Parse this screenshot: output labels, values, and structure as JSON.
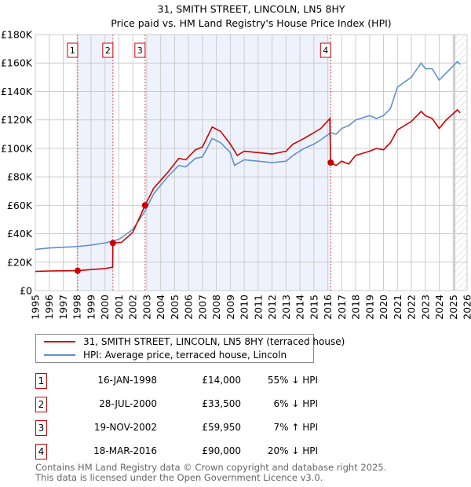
{
  "title": "31, SMITH STREET, LINCOLN, LN5 8HY",
  "subtitle": "Price paid vs. HM Land Registry's House Price Index (HPI)",
  "colors": {
    "property": "#cc0000",
    "hpi": "#6090d0",
    "shade": "#eef2fc"
  },
  "chart_data": {
    "type": "line",
    "xlim": [
      1995,
      2026
    ],
    "ylim": [
      0,
      180000
    ],
    "yticks": [
      0,
      20000,
      40000,
      60000,
      80000,
      100000,
      120000,
      140000,
      160000,
      180000
    ],
    "ytick_labels": [
      "£0",
      "£20K",
      "£40K",
      "£60K",
      "£80K",
      "£100K",
      "£120K",
      "£140K",
      "£160K",
      "£180K"
    ],
    "xticks": [
      1995,
      1996,
      1997,
      1998,
      1999,
      2000,
      2001,
      2002,
      2003,
      2004,
      2005,
      2006,
      2007,
      2008,
      2009,
      2010,
      2011,
      2012,
      2013,
      2014,
      2015,
      2016,
      2017,
      2018,
      2019,
      2020,
      2021,
      2022,
      2023,
      2024,
      2025,
      2026
    ],
    "grid": true,
    "forecast_hatch_from": 2025.1,
    "series": [
      {
        "name": "31, SMITH STREET, LINCOLN, LN5 8HY (terraced house)",
        "x": [
          1995,
          1996,
          1997,
          1998.04,
          1999,
          2000,
          2000.55,
          2000.57,
          2001.2,
          2002,
          2002.88,
          2003.5,
          2004.5,
          2005.3,
          2005.8,
          2006.5,
          2007,
          2007.7,
          2008.3,
          2009,
          2009.5,
          2010,
          2011,
          2012,
          2013,
          2013.5,
          2014.3,
          2015,
          2015.5,
          2016.15,
          2016.2,
          2016.6,
          2017,
          2017.5,
          2018,
          2019,
          2019.5,
          2020,
          2020.5,
          2021,
          2022,
          2022.7,
          2023,
          2023.5,
          2024,
          2024.5,
          2025.3,
          2025.5
        ],
        "y": [
          13500,
          13800,
          13900,
          14000,
          14800,
          15500,
          16500,
          33500,
          34000,
          41000,
          59950,
          72000,
          83000,
          93000,
          92000,
          99000,
          101000,
          115000,
          112000,
          103000,
          95000,
          98000,
          97000,
          96000,
          98000,
          103000,
          107000,
          111000,
          114000,
          121000,
          90000,
          88000,
          91000,
          89000,
          95000,
          98000,
          100000,
          99000,
          104000,
          113000,
          119000,
          126000,
          123000,
          121000,
          114000,
          120000,
          127000,
          125000
        ]
      },
      {
        "name": "HPI: Average price, terraced house, Lincoln",
        "x": [
          1995,
          1996,
          1997,
          1998,
          1999,
          2000,
          2001,
          2002,
          2002.88,
          2003.5,
          2004.5,
          2005.3,
          2005.8,
          2006.5,
          2007,
          2007.7,
          2008.3,
          2009,
          2009.3,
          2010,
          2011,
          2012,
          2013,
          2013.5,
          2014.3,
          2015,
          2015.5,
          2016.2,
          2016.6,
          2017,
          2017.5,
          2018,
          2019,
          2019.5,
          2020,
          2020.5,
          2021,
          2022,
          2022.7,
          2023,
          2023.5,
          2024,
          2024.5,
          2025.3,
          2025.5
        ],
        "y": [
          29000,
          30000,
          30500,
          31000,
          32000,
          33500,
          36000,
          43000,
          56000,
          68000,
          80000,
          88000,
          87000,
          93000,
          94000,
          107000,
          104000,
          97000,
          88000,
          92000,
          91000,
          90000,
          91000,
          95000,
          100000,
          103000,
          106000,
          111000,
          110000,
          114000,
          116000,
          120000,
          123000,
          121000,
          123000,
          128000,
          143000,
          150000,
          160000,
          156000,
          156000,
          148000,
          153000,
          161000,
          159000
        ]
      }
    ],
    "sales": [
      {
        "id": "1",
        "year": 1998.04,
        "price": 14000
      },
      {
        "id": "2",
        "year": 2000.57,
        "price": 33500
      },
      {
        "id": "3",
        "year": 2002.88,
        "price": 59950
      },
      {
        "id": "4",
        "year": 2016.21,
        "price": 90000
      }
    ]
  },
  "legend": {
    "property": "31, SMITH STREET, LINCOLN, LN5 8HY (terraced house)",
    "hpi": "HPI: Average price, terraced house, Lincoln"
  },
  "transactions": [
    {
      "id": "1",
      "date": "16-JAN-1998",
      "price": "£14,000",
      "hpi": "55% ↓ HPI"
    },
    {
      "id": "2",
      "date": "28-JUL-2000",
      "price": "£33,500",
      "hpi": "6% ↓ HPI"
    },
    {
      "id": "3",
      "date": "19-NOV-2002",
      "price": "£59,950",
      "hpi": "7% ↑ HPI"
    },
    {
      "id": "4",
      "date": "18-MAR-2016",
      "price": "£90,000",
      "hpi": "20% ↓ HPI"
    }
  ],
  "footer": {
    "line1": "Contains HM Land Registry data © Crown copyright and database right 2025.",
    "line2": "This data is licensed under the Open Government Licence v3.0."
  }
}
